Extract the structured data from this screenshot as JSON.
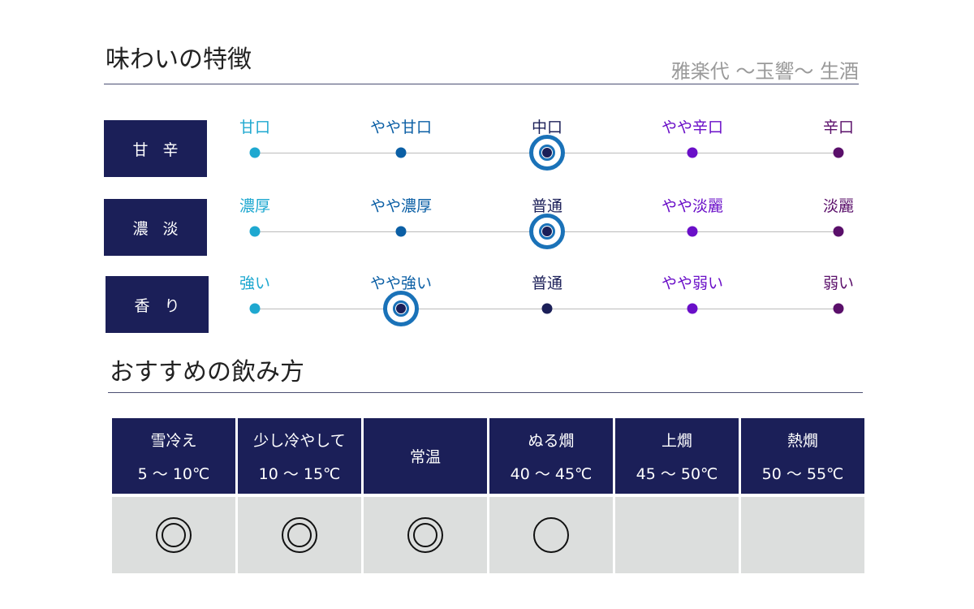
{
  "header": {
    "title": "味わいの特徴",
    "product": "雅楽代 〜玉響〜 生酒"
  },
  "taste": {
    "level_colors": [
      "#1ea8d0",
      "#0b5fa5",
      "#1b1f58",
      "#6a0fc8",
      "#5a0f6a"
    ],
    "rows": [
      {
        "label": "甘辛",
        "levels": [
          "甘口",
          "やや甘口",
          "中口",
          "やや辛口",
          "辛口"
        ],
        "selected_index": 2
      },
      {
        "label": "濃淡",
        "levels": [
          "濃厚",
          "やや濃厚",
          "普通",
          "やや淡麗",
          "淡麗"
        ],
        "selected_index": 2
      },
      {
        "label": "香り",
        "levels": [
          "強い",
          "やや強い",
          "普通",
          "やや弱い",
          "弱い"
        ],
        "selected_index": 1
      }
    ]
  },
  "serving": {
    "title": "おすすめの飲み方",
    "columns": [
      {
        "name": "雪冷え",
        "temp": "5 〜 10℃",
        "mark": "double-circle"
      },
      {
        "name": "少し冷やして",
        "temp": "10 〜 15℃",
        "mark": "double-circle"
      },
      {
        "name": "常温",
        "temp": "",
        "mark": "double-circle"
      },
      {
        "name": "ぬる燗",
        "temp": "40 〜 45℃",
        "mark": "circle"
      },
      {
        "name": "上燗",
        "temp": "45 〜 50℃",
        "mark": "none"
      },
      {
        "name": "熱燗",
        "temp": "50 〜 55℃",
        "mark": "none"
      }
    ]
  }
}
